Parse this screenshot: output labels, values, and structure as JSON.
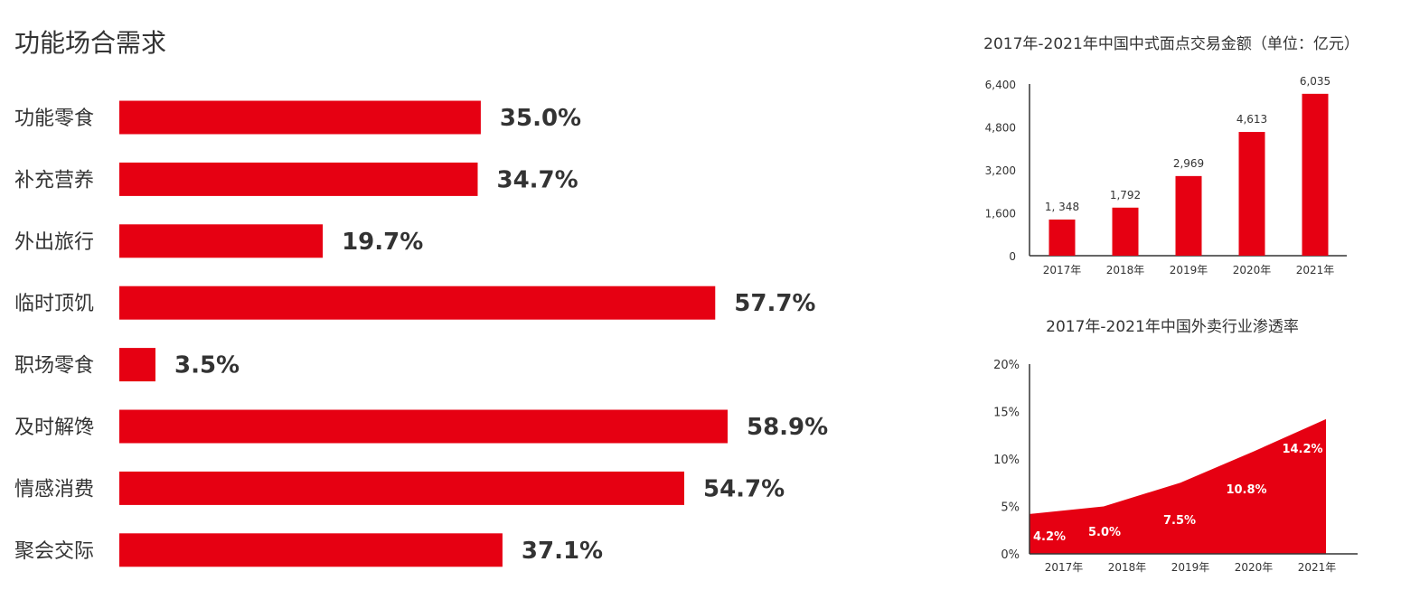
{
  "chart_data": [
    {
      "type": "bar",
      "orientation": "horizontal",
      "title": "功能场合需求",
      "color": "#e60012",
      "categories": [
        "功能零食",
        "补充营养",
        "外出旅行",
        "临时顶饥",
        "职场零食",
        "及时解馋",
        "情感消费",
        "聚会交际"
      ],
      "values": [
        35.0,
        34.7,
        19.7,
        57.7,
        3.5,
        58.9,
        54.7,
        37.1
      ],
      "value_labels": [
        "35.0%",
        "34.7%",
        "19.7%",
        "57.7%",
        "3.5%",
        "58.9%",
        "54.7%",
        "37.1%"
      ]
    },
    {
      "type": "bar",
      "title": "2017年-2021年中国中式面点交易金额（单位：亿元）",
      "color": "#e60012",
      "categories": [
        "2017年",
        "2018年",
        "2019年",
        "2020年",
        "2021年"
      ],
      "values": [
        1348,
        1792,
        2969,
        4613,
        6035
      ],
      "value_labels": [
        "1, 348",
        "1,792",
        "2,969",
        "4,613",
        "6,035"
      ],
      "ylim": [
        0,
        6400
      ],
      "yticks": [
        0,
        1600,
        3200,
        4800,
        6400
      ],
      "ytick_labels": [
        "0",
        "1,600",
        "3,200",
        "4,800",
        "6,400"
      ]
    },
    {
      "type": "area",
      "title": "2017年-2021年中国外卖行业渗透率",
      "color": "#e60012",
      "categories": [
        "2017年",
        "2018年",
        "2019年",
        "2020年",
        "2021年"
      ],
      "values": [
        4.2,
        5.0,
        7.5,
        10.8,
        14.2
      ],
      "value_labels": [
        "4.2%",
        "5.0%",
        "7.5%",
        "10.8%",
        "14.2%"
      ],
      "ylim": [
        0,
        20
      ],
      "yticks": [
        0,
        5,
        10,
        15,
        20
      ],
      "ytick_labels": [
        "0%",
        "5%",
        "10%",
        "15%",
        "20%"
      ]
    }
  ]
}
